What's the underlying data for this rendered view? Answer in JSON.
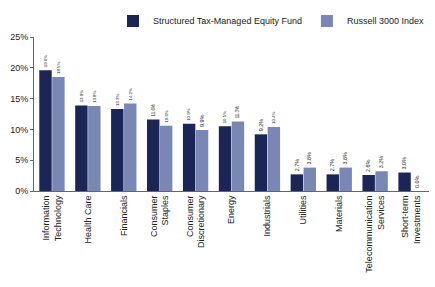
{
  "chart_data": {
    "type": "bar",
    "categories": [
      "Information Technology",
      "Health Care",
      "Financials",
      "Consumer Staples",
      "Consumer Discretionary",
      "Energy",
      "Industrials",
      "Utilities",
      "Materials",
      "Telecommunication Services",
      "Short-term Investments"
    ],
    "series": [
      {
        "name": "Structured Tax-Managed Equity Fund",
        "color": "#1b2656",
        "values": [
          19.6,
          13.9,
          13.3,
          11.6,
          10.9,
          10.5,
          9.2,
          2.7,
          2.7,
          2.6,
          3.0
        ],
        "value_labels": [
          "19.6%",
          "13.9%",
          "13.3%",
          "11.6%",
          "10.9%",
          "10.5%",
          "9.2%",
          "2.7%",
          "2.7%",
          "2.6%",
          "3.0%"
        ]
      },
      {
        "name": "Russell 3000 Index",
        "color": "#7a86b4",
        "values": [
          18.5,
          13.8,
          14.2,
          10.6,
          9.9,
          11.3,
          10.4,
          3.8,
          3.8,
          3.2,
          0.0
        ],
        "value_labels": [
          "18.5%",
          "13.8%",
          "14.2%",
          "10.6%",
          "9.9%",
          "11.3%",
          "10.4%",
          "3.8%",
          "3.8%",
          "3.2%",
          "0.0%"
        ]
      }
    ],
    "ylim": [
      0,
      25
    ],
    "yticks": [
      {
        "value": 0,
        "label": "0%"
      },
      {
        "value": 5,
        "label": "5%"
      },
      {
        "value": 10,
        "label": "10%"
      },
      {
        "value": 15,
        "label": "15%"
      },
      {
        "value": 20,
        "label": "20%"
      },
      {
        "value": 25,
        "label": "25%"
      }
    ],
    "grid": false,
    "legend": "top-right",
    "data_labels": true
  }
}
